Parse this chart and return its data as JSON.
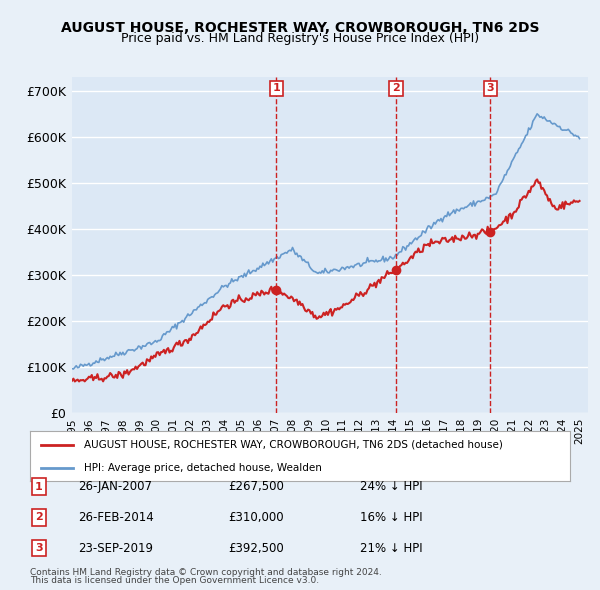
{
  "title": "AUGUST HOUSE, ROCHESTER WAY, CROWBOROUGH, TN6 2DS",
  "subtitle": "Price paid vs. HM Land Registry's House Price Index (HPI)",
  "ylabel_ticks": [
    "£0",
    "£100K",
    "£200K",
    "£300K",
    "£400K",
    "£500K",
    "£600K",
    "£700K"
  ],
  "ytick_values": [
    0,
    100000,
    200000,
    300000,
    400000,
    500000,
    600000,
    700000
  ],
  "ylim": [
    0,
    730000
  ],
  "xlim_start": 1995.0,
  "xlim_end": 2025.5,
  "bg_color": "#e8f0f8",
  "plot_bg_color": "#dce8f5",
  "grid_color": "#ffffff",
  "hpi_color": "#6699cc",
  "price_color": "#cc2222",
  "sale_marker_color": "#cc2222",
  "vline_color": "#cc2222",
  "transactions": [
    {
      "label": "1",
      "date_float": 2007.07,
      "price": 267500,
      "pct": "24%",
      "date_str": "26-JAN-2007"
    },
    {
      "label": "2",
      "date_float": 2014.15,
      "price": 310000,
      "pct": "16%",
      "date_str": "26-FEB-2014"
    },
    {
      "label": "3",
      "date_float": 2019.73,
      "price": 392500,
      "pct": "21%",
      "date_str": "23-SEP-2019"
    }
  ],
  "legend_house_label": "AUGUST HOUSE, ROCHESTER WAY, CROWBOROUGH, TN6 2DS (detached house)",
  "legend_hpi_label": "HPI: Average price, detached house, Wealden",
  "footer1": "Contains HM Land Registry data © Crown copyright and database right 2024.",
  "footer2": "This data is licensed under the Open Government Licence v3.0.",
  "table_rows": [
    [
      "1",
      "26-JAN-2007",
      "£267,500",
      "24% ↓ HPI"
    ],
    [
      "2",
      "26-FEB-2014",
      "£310,000",
      "16% ↓ HPI"
    ],
    [
      "3",
      "23-SEP-2019",
      "£392,500",
      "21% ↓ HPI"
    ]
  ]
}
